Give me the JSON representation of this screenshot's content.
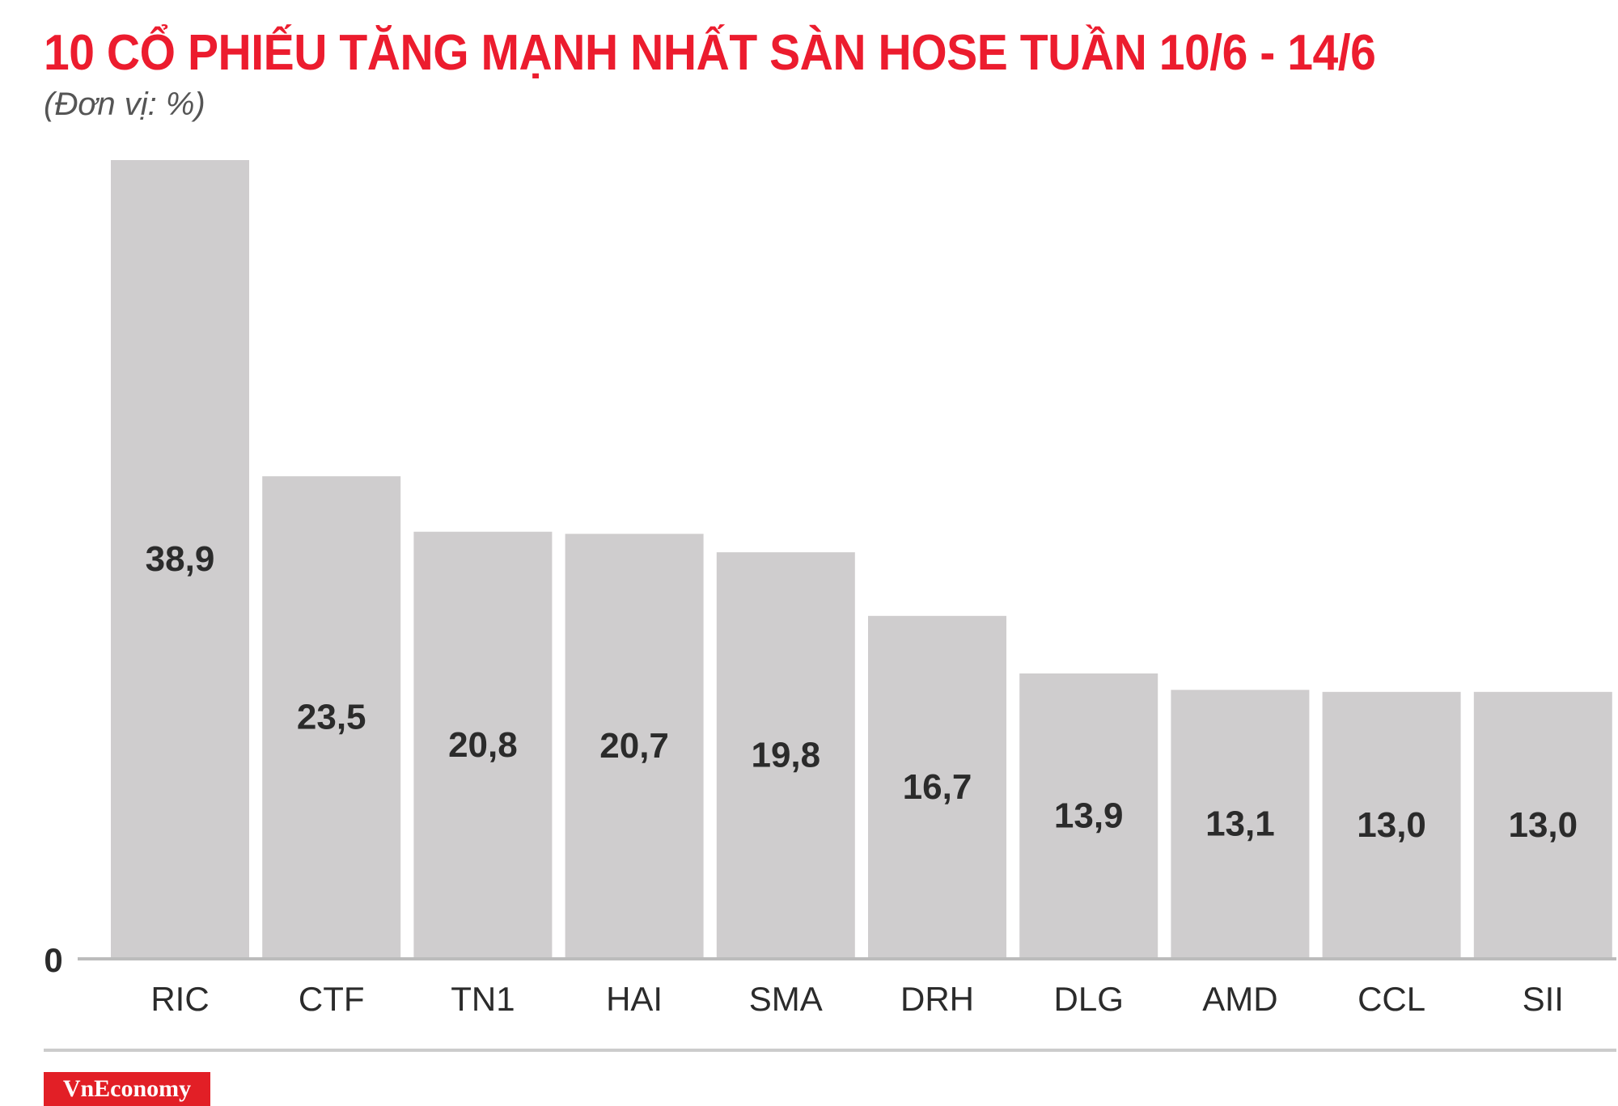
{
  "header": {
    "title": "10 CỔ PHIẾU TĂNG MẠNH NHẤT SÀN HOSE TUẦN 10/6 - 14/6",
    "unit": "(Đơn vị: %)"
  },
  "footer": {
    "logo_text": "VnEconomy"
  },
  "colors": {
    "title": "#ec1c2e",
    "bar": "#cfcdce",
    "logo_bg": "#e21f26"
  },
  "chart_data": {
    "type": "bar",
    "categories": [
      "RIC",
      "CTF",
      "TN1",
      "HAI",
      "SMA",
      "DRH",
      "DLG",
      "AMD",
      "CCL",
      "SII"
    ],
    "values": [
      38.9,
      23.5,
      20.8,
      20.7,
      19.8,
      16.7,
      13.9,
      13.1,
      13.0,
      13.0
    ],
    "value_labels": [
      "38,9",
      "23,5",
      "20,8",
      "20,7",
      "19,8",
      "16,7",
      "13,9",
      "13,1",
      "13,0",
      "13,0"
    ],
    "title": "10 CỔ PHIẾU TĂNG MẠNH NHẤT SÀN HOSE TUẦN 10/6 - 14/6",
    "ylabel": "(Đơn vị: %)",
    "xlabel": "",
    "y_tick_labels": [
      "0"
    ],
    "ylim": [
      0,
      38.9
    ],
    "grid": false,
    "legend": "none"
  }
}
